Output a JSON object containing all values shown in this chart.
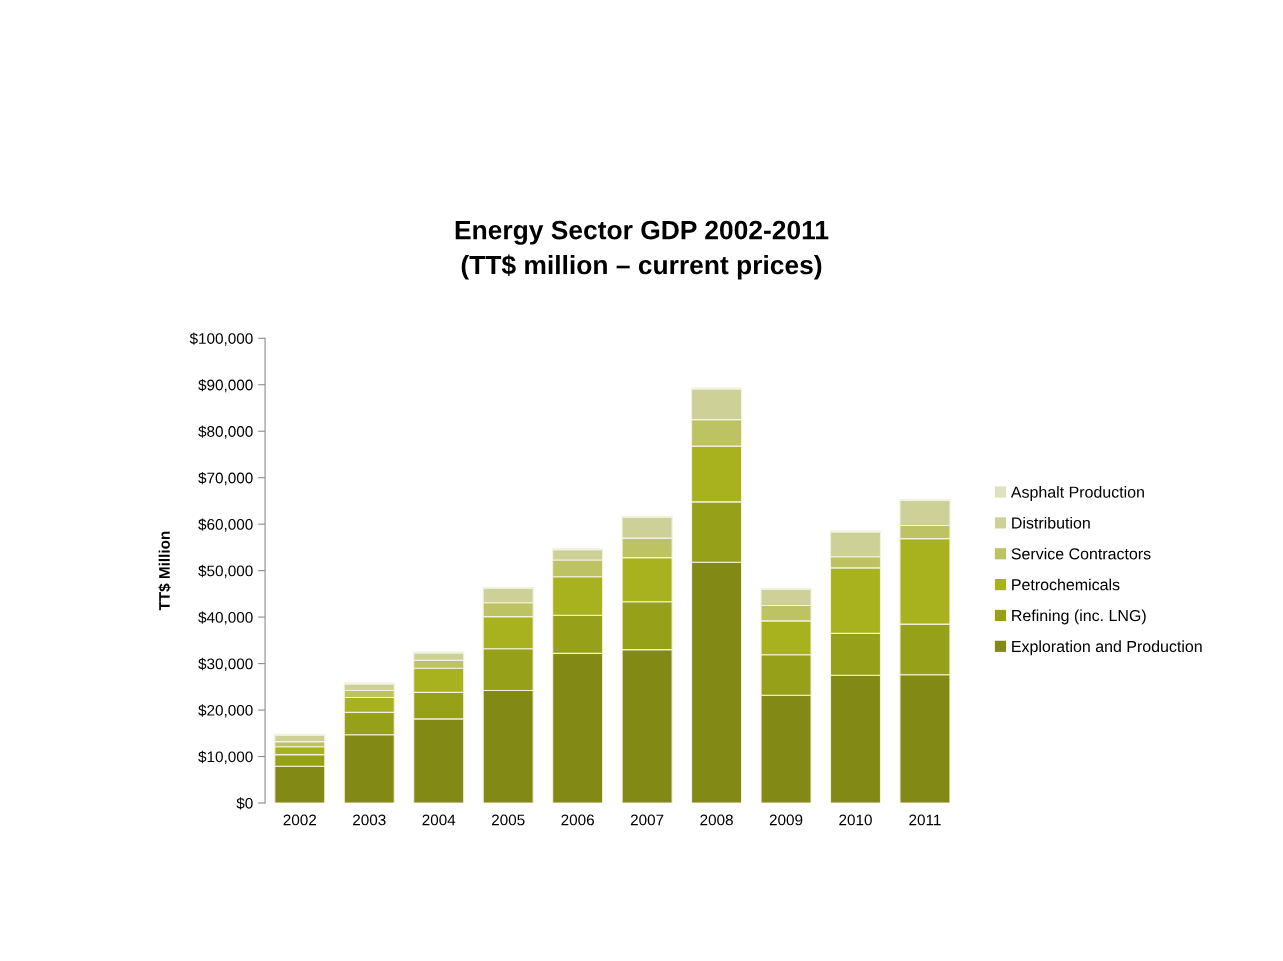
{
  "chart_data": {
    "type": "bar",
    "title": "Energy Sector GDP 2002-2011\n(TT$ million – current prices)",
    "ylabel": "TT$ Million",
    "categories": [
      "2002",
      "2003",
      "2004",
      "2005",
      "2006",
      "2007",
      "2008",
      "2009",
      "2010",
      "2011"
    ],
    "stacked": true,
    "legend": "right",
    "grid": false,
    "ylim": [
      0,
      100000
    ],
    "yticks": [
      {
        "value": 0,
        "label": "$0"
      },
      {
        "value": 10000,
        "label": "$10,000"
      },
      {
        "value": 20000,
        "label": "$20,000"
      },
      {
        "value": 30000,
        "label": "$30,000"
      },
      {
        "value": 40000,
        "label": "$40,000"
      },
      {
        "value": 50000,
        "label": "$50,000"
      },
      {
        "value": 60000,
        "label": "$60,000"
      },
      {
        "value": 70000,
        "label": "$70,000"
      },
      {
        "value": 80000,
        "label": "$80,000"
      },
      {
        "value": 90000,
        "label": "$90,000"
      },
      {
        "value": 100000,
        "label": "$100,000"
      }
    ],
    "series": [
      {
        "name": "Exploration and Production",
        "color": "#828a15",
        "values": [
          7900,
          14700,
          18100,
          24200,
          32200,
          33000,
          51800,
          23200,
          27500,
          27600
        ]
      },
      {
        "name": "Refining (inc. LNG)",
        "color": "#97a019",
        "values": [
          2500,
          4800,
          5700,
          9000,
          8200,
          10300,
          13000,
          8700,
          9000,
          10900
        ]
      },
      {
        "name": "Petrochemicals",
        "color": "#a8b21f",
        "values": [
          1700,
          3200,
          5200,
          6900,
          8300,
          9500,
          12000,
          7300,
          14100,
          18400
        ]
      },
      {
        "name": "Service Contractors",
        "color": "#bdc263",
        "values": [
          1100,
          1500,
          1700,
          3000,
          3600,
          4200,
          5700,
          3300,
          2400,
          2800
        ]
      },
      {
        "name": "Distribution",
        "color": "#cdd198",
        "values": [
          1400,
          1400,
          1600,
          3100,
          2200,
          4500,
          6600,
          3500,
          5300,
          5400
        ]
      },
      {
        "name": "Asphalt Production",
        "color": "#dfe2c0",
        "values": [
          200,
          200,
          200,
          200,
          200,
          200,
          200,
          200,
          200,
          200
        ]
      }
    ]
  }
}
